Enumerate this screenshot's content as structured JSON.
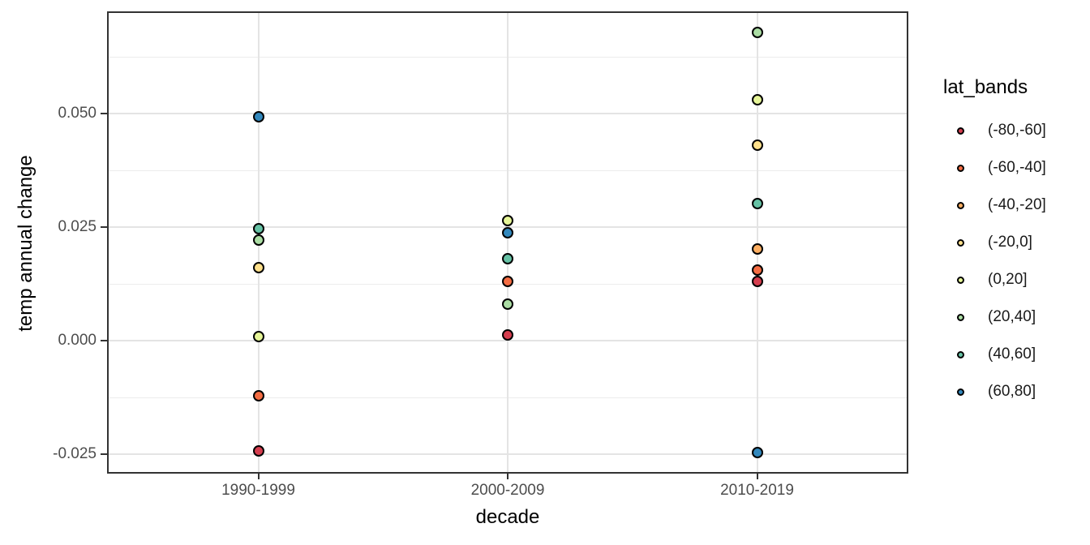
{
  "chart_data": {
    "type": "scatter",
    "title": "",
    "xlabel": "decade",
    "ylabel": "temp annual change",
    "categories": [
      "1990-1999",
      "2000-2009",
      "2010-2019"
    ],
    "series": [
      {
        "name": "(-80,-60]",
        "color": "#D53E4F",
        "values": [
          -0.0243,
          0.0012,
          0.0131
        ]
      },
      {
        "name": "(-60,-40]",
        "color": "#F46D43",
        "values": [
          -0.0122,
          0.0131,
          0.0155
        ]
      },
      {
        "name": "(-40,-20]",
        "color": "#FDAE61",
        "values": [
          null,
          null,
          0.0202
        ]
      },
      {
        "name": "(-20,0]",
        "color": "#FEE08B",
        "values": [
          0.016,
          null,
          0.043
        ]
      },
      {
        "name": "(0,20]",
        "color": "#E6F598",
        "values": [
          0.0009,
          0.0264,
          0.053
        ]
      },
      {
        "name": "(20,40]",
        "color": "#ABDDA4",
        "values": [
          0.0221,
          0.008,
          0.0678
        ]
      },
      {
        "name": "(40,60]",
        "color": "#66C2A5",
        "values": [
          0.0246,
          0.0181,
          0.0302
        ]
      },
      {
        "name": "(60,80]",
        "color": "#3288BD",
        "values": [
          0.0493,
          0.0237,
          -0.0247
        ]
      }
    ],
    "y_ticks": [
      {
        "label": "0.050",
        "value": 0.05
      },
      {
        "label": "0.025",
        "value": 0.025
      },
      {
        "label": "0.000",
        "value": 0.0
      },
      {
        "label": "-0.025",
        "value": -0.025
      }
    ],
    "y_minor": [
      0.0625,
      0.0375,
      0.0125,
      -0.0125
    ],
    "ylim": [
      -0.0291,
      0.0723
    ],
    "grid": true,
    "legend_position": "right"
  },
  "legend": {
    "title": "lat_bands"
  },
  "colors": {
    "background": "#FFFFFF",
    "panel_border": "#333333",
    "grid_major": "#E4E4E4",
    "grid_minor": "#ECECEC",
    "tick_mark": "#333333",
    "tick_label": "#4D4D4D",
    "axis_title": "#000000",
    "point_stroke": "#000000"
  }
}
